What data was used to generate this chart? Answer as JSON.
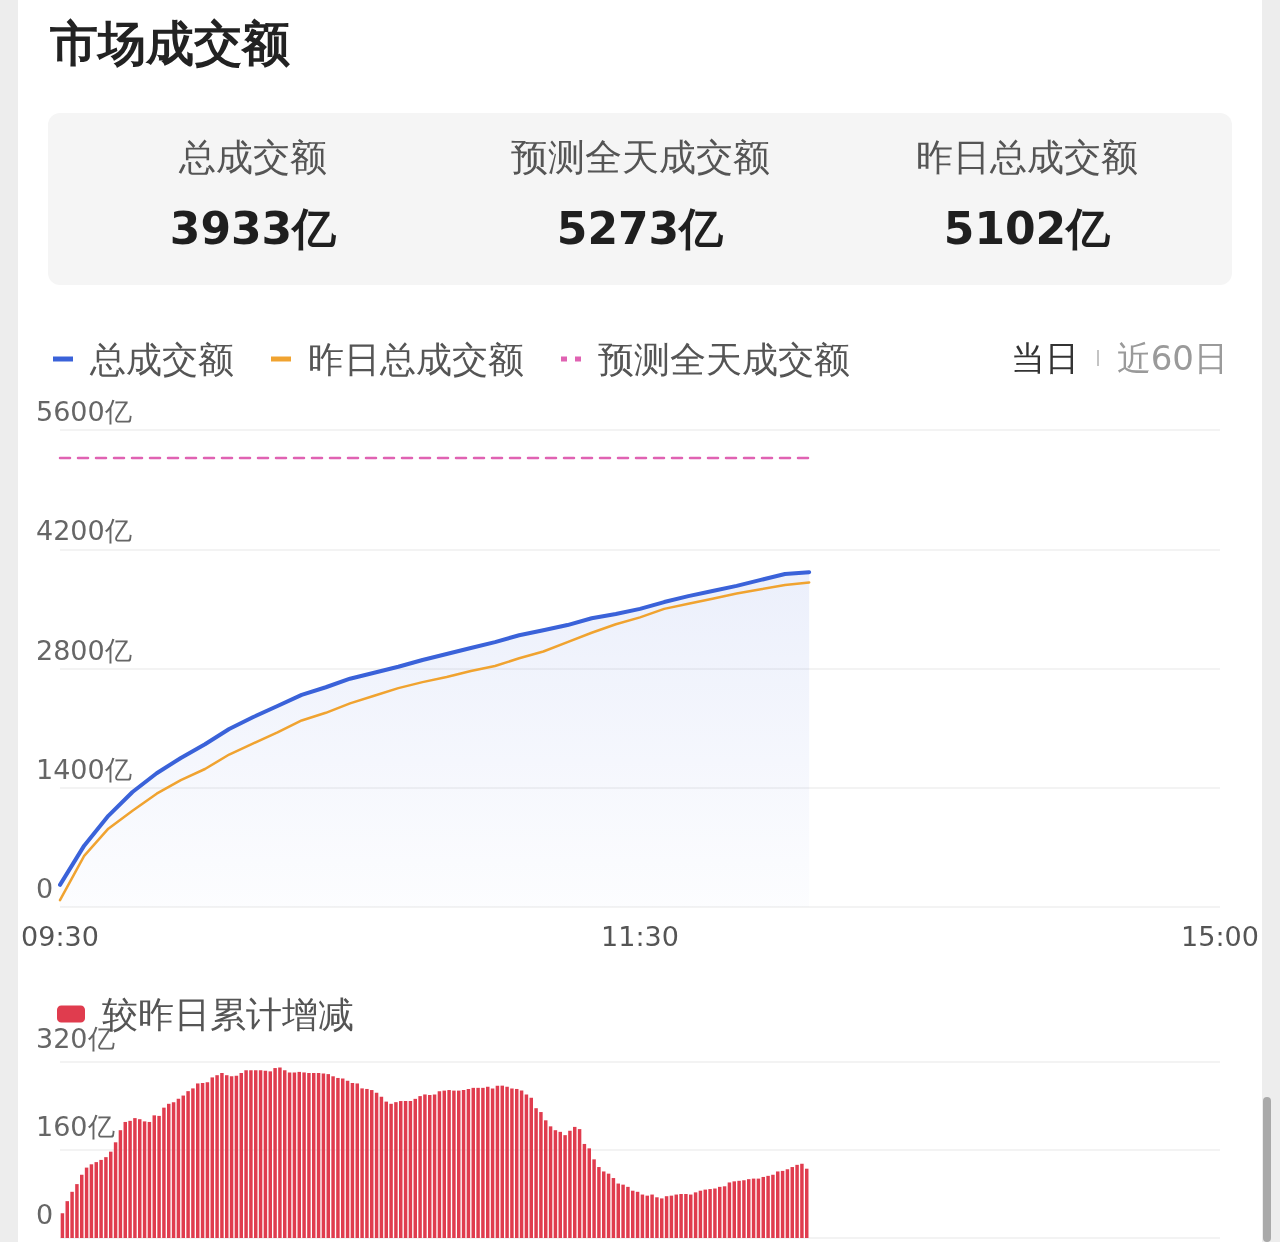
{
  "chart_data": [
    {
      "type": "other",
      "title": "市场成交额",
      "annotations": [
        "总成交额",
        "3933亿",
        "预测全天成交额",
        "5273亿",
        "昨日总成交额",
        "5102亿"
      ]
    },
    {
      "type": "line",
      "categories": [
        "09:30",
        null,
        null,
        null,
        null,
        null,
        null,
        null,
        null,
        null,
        null,
        null,
        null,
        null,
        null,
        null,
        null,
        null,
        null,
        null,
        null,
        null,
        null,
        null,
        "11:30",
        null,
        null,
        null,
        null,
        null,
        null,
        null,
        null,
        null,
        null,
        null,
        null,
        null,
        null,
        null,
        null,
        null,
        null,
        null,
        null,
        null,
        null,
        null,
        "15:00"
      ],
      "series": [
        {
          "name": "总成交额",
          "type": "area",
          "color": "#3a62d9",
          "line_style": "solid",
          "values": [
            260,
            720,
            1070,
            1350,
            1570,
            1750,
            1910,
            2090,
            2230,
            2360,
            2490,
            2580,
            2680,
            2750,
            2820,
            2900,
            2970,
            3040,
            3110,
            3190,
            3250,
            3310,
            3390,
            3440,
            3500,
            3580,
            3650,
            3710,
            3770,
            3840,
            3910,
            3930,
            null,
            null,
            null,
            null,
            null,
            null,
            null,
            null,
            null,
            null,
            null,
            null,
            null,
            null,
            null,
            null,
            null
          ]
        },
        {
          "name": "昨日总成交额",
          "color": "#f0a330",
          "line_style": "solid",
          "values": [
            80,
            600,
            920,
            1130,
            1330,
            1490,
            1620,
            1790,
            1920,
            2050,
            2190,
            2280,
            2390,
            2480,
            2570,
            2640,
            2700,
            2770,
            2830,
            2920,
            3000,
            3110,
            3220,
            3320,
            3400,
            3500,
            3560,
            3620,
            3680,
            3730,
            3780,
            3810,
            null,
            null,
            null,
            null,
            null,
            null,
            null,
            null,
            null,
            null,
            null,
            null,
            null,
            null,
            null,
            null,
            null
          ]
        },
        {
          "name": "预测全天成交额",
          "color": "#e062b2",
          "line_style": "dashed",
          "values": [
            5270,
            5270,
            5270,
            5270,
            5270,
            5270,
            5270,
            5270,
            5270,
            5270,
            5270,
            5270,
            5270,
            5270,
            5270,
            5270,
            5270,
            5270,
            5270,
            5270,
            5270,
            5270,
            5270,
            5270,
            5270,
            5270,
            5270,
            5270,
            5270,
            5270,
            5270,
            5270,
            null,
            null,
            null,
            null,
            null,
            null,
            null,
            null,
            null,
            null,
            null,
            null,
            null,
            null,
            null,
            null,
            null
          ]
        }
      ],
      "ylim": [
        0,
        5600
      ],
      "yticks": [
        0,
        {
          "value": 1400,
          "label": "1400亿"
        },
        {
          "value": 2800,
          "label": "2800亿"
        },
        {
          "value": 4200,
          "label": "4200亿"
        },
        {
          "value": 5600,
          "label": "5600亿"
        }
      ],
      "grid": "y",
      "legend": "top left",
      "marker": "none",
      "annotations": [
        "当日",
        "近60日"
      ]
    },
    {
      "type": "bar",
      "categories": [
        null,
        null,
        null,
        null,
        null,
        null,
        null,
        null,
        null,
        null,
        null,
        null,
        null,
        null,
        null,
        null,
        null,
        null,
        null,
        null,
        null,
        null,
        null,
        null,
        null,
        null,
        null,
        null,
        null,
        null,
        null,
        null,
        null,
        null,
        null,
        null,
        null,
        null,
        null,
        null,
        null,
        null,
        null,
        null,
        null,
        null,
        null,
        null,
        null,
        null,
        null,
        null,
        null,
        null,
        null,
        null,
        null,
        null,
        null,
        null,
        null,
        null,
        null,
        null,
        null,
        null,
        null,
        null,
        null,
        null,
        null,
        null,
        null,
        null,
        null,
        null,
        null,
        null,
        null,
        null,
        null,
        null,
        null,
        null,
        null,
        null,
        null,
        null,
        null,
        null,
        null,
        null,
        null,
        null,
        null,
        null,
        null,
        null,
        null,
        null,
        null,
        null,
        null,
        null,
        null,
        null,
        null,
        null,
        null,
        null,
        null,
        null,
        null,
        null,
        null,
        null,
        null,
        null,
        null,
        null,
        null,
        null,
        null,
        null,
        null,
        null,
        null,
        null,
        null,
        null,
        null,
        null,
        null,
        null,
        null,
        null,
        null,
        null,
        null,
        null,
        null,
        null,
        null,
        null,
        null,
        null,
        null,
        null,
        null,
        null,
        null,
        null,
        null,
        null,
        null,
        null,
        null,
        null,
        null,
        null,
        null,
        null,
        null,
        null,
        null,
        null,
        null,
        null,
        null,
        null,
        null,
        null,
        null,
        null,
        null,
        null,
        null,
        null,
        null,
        null,
        null,
        null,
        null,
        null,
        null,
        null,
        null,
        null,
        null,
        null,
        null,
        null,
        null,
        null,
        null,
        null,
        null,
        null,
        null,
        null,
        null,
        null,
        null,
        null,
        null,
        null,
        null,
        null,
        null,
        null,
        null,
        null,
        null,
        null,
        null,
        null,
        null,
        null,
        null,
        null,
        null,
        null,
        null,
        null,
        null,
        null,
        null,
        null,
        null,
        null,
        null,
        null,
        null,
        null,
        null,
        null,
        null,
        null,
        null,
        null
      ],
      "series": [
        {
          "name": "较昨日累计增减",
          "color": "#e03c4e",
          "values": [
            45,
            67,
            84,
            98,
            115,
            128,
            134,
            138,
            142,
            147,
            157,
            174,
            196,
            211,
            213,
            218,
            216,
            212,
            211,
            223,
            222,
            237,
            244,
            247,
            253,
            259,
            267,
            272,
            281,
            282,
            283,
            292,
            296,
            300,
            296,
            294,
            295,
            300,
            305,
            305,
            305,
            305,
            304,
            303,
            309,
            310,
            305,
            301,
            301,
            302,
            301,
            300,
            300,
            300,
            299,
            298,
            294,
            291,
            290,
            286,
            282,
            281,
            272,
            271,
            269,
            264,
            257,
            248,
            244,
            247,
            249,
            249,
            249,
            253,
            258,
            261,
            260,
            261,
            267,
            268,
            269,
            268,
            268,
            269,
            271,
            273,
            273,
            273,
            275,
            272,
            277,
            277,
            275,
            272,
            271,
            268,
            261,
            255,
            236,
            229,
            214,
            203,
            196,
            193,
            187,
            195,
            202,
            198,
            171,
            163,
            143,
            129,
            121,
            117,
            109,
            99,
            97,
            93,
            86,
            84,
            79,
            77,
            79,
            74,
            72,
            76,
            77,
            79,
            80,
            80,
            79,
            83,
            86,
            88,
            89,
            90,
            93,
            94,
            101,
            103,
            104,
            105,
            107,
            108,
            108,
            111,
            113,
            115,
            121,
            122,
            125,
            129,
            133,
            135,
            126,
            null,
            null,
            null,
            null,
            null,
            null,
            null,
            null,
            null,
            null,
            null,
            null,
            null,
            null,
            null,
            null,
            null,
            null,
            null,
            null,
            null,
            null,
            null,
            null,
            null,
            null,
            null,
            null,
            null,
            null,
            null,
            null,
            null,
            null,
            null,
            null,
            null,
            null,
            null,
            null,
            null,
            null,
            null,
            null,
            null,
            null,
            null,
            null,
            null,
            null,
            null,
            null,
            null,
            null,
            null,
            null,
            null,
            null,
            null,
            null,
            null,
            null,
            null,
            null,
            null,
            null,
            null,
            null,
            null,
            null,
            null,
            null,
            null,
            null,
            null,
            null,
            null,
            null,
            null,
            null,
            null,
            null,
            null,
            null,
            null
          ]
        }
      ],
      "ylim": [
        0,
        320
      ],
      "yticks": [
        0,
        {
          "value": 160,
          "label": "160亿"
        },
        {
          "value": 320,
          "label": "320亿"
        }
      ],
      "grid": "y",
      "legend": "top left",
      "tick_labels": "y"
    }
  ]
}
